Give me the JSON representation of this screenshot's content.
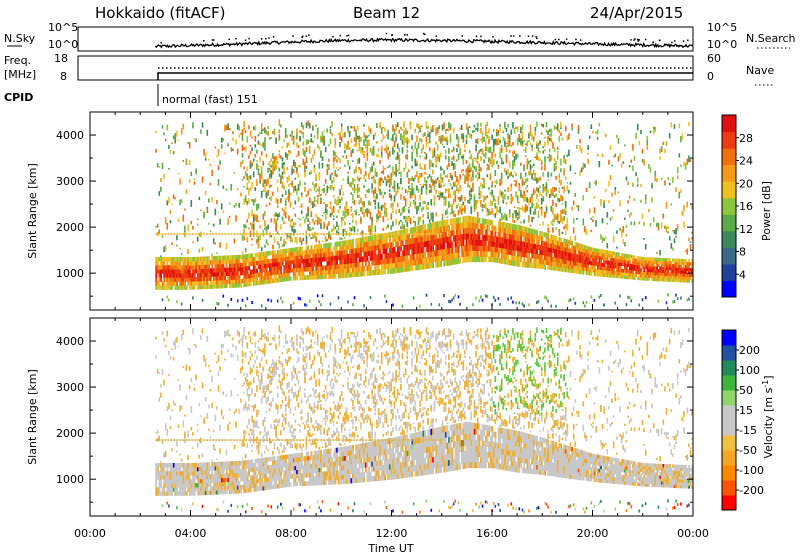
{
  "header": {
    "station": "Hokkaido (fitACF)",
    "beam": "Beam 12",
    "date": "24/Apr/2015"
  },
  "nsky_panel": {
    "left_label": "N.Sky",
    "left_ticks": [
      "10^5",
      "10^0"
    ],
    "right_label": "N.Search",
    "right_ticks": [
      "10^5",
      "10^0"
    ]
  },
  "freq_panel": {
    "left_label_1": "Freq.",
    "left_label_2": "[MHz]",
    "left_ticks": [
      "18",
      "8"
    ],
    "right_label": "Nave",
    "right_ticks": [
      "60",
      "0"
    ]
  },
  "cpid": {
    "label": "CPID",
    "mode": "normal (fast) 151"
  },
  "x_axis": {
    "label": "Time UT",
    "ticks": [
      "00:00",
      "04:00",
      "08:00",
      "12:00",
      "16:00",
      "20:00",
      "00:00"
    ]
  },
  "colors": {
    "power_scale": [
      "#0000ff",
      "#20409c",
      "#3a6a8a",
      "#3c8a5a",
      "#5aaa46",
      "#8cc63c",
      "#f0c020",
      "#f59a18",
      "#f07010",
      "#ee3a10",
      "#e01010"
    ],
    "velocity_scale": [
      "#ff0000",
      "#ff5500",
      "#ff8800",
      "#f5a623",
      "#f0c040",
      "#c8c8c8",
      "#c8c8c8",
      "#8fd36a",
      "#3cb43c",
      "#208a5a",
      "#2050a0",
      "#0000ff"
    ]
  },
  "chart_data": [
    {
      "type": "line",
      "title": "N.Sky",
      "ylabel": "N.Sky",
      "scale": "log",
      "ylim_label": [
        "10^0",
        "10^5"
      ],
      "x_hours": [
        2.6,
        4,
        6,
        8,
        10,
        12,
        14,
        16,
        18,
        20,
        22,
        24
      ],
      "values_relative": [
        0.15,
        0.25,
        0.4,
        0.6,
        0.75,
        0.8,
        0.75,
        0.65,
        0.55,
        0.4,
        0.3,
        0.2
      ]
    },
    {
      "type": "line",
      "title": "Freq / Nave",
      "ylabel": "Freq. [MHz]",
      "ylim": [
        8,
        18
      ],
      "x_hours": [
        2.6,
        24
      ],
      "freq_values": [
        11,
        11
      ],
      "nave_values": [
        33,
        33
      ]
    },
    {
      "type": "heatmap",
      "title": "Power",
      "ylabel": "Slant Range [km]",
      "xlabel": "Time UT",
      "colorbar_label": "Power [dB]",
      "colorbar_ticks": [
        "4",
        "8",
        "12",
        "16",
        "20",
        "24",
        "28"
      ],
      "yticks": [
        "1000",
        "2000",
        "3000",
        "4000"
      ],
      "ylim": [
        200,
        4500
      ],
      "xlim_hours": [
        0,
        24
      ],
      "data_start_hour": 2.6,
      "main_band": {
        "x_hours": [
          2.6,
          4,
          6,
          8,
          10,
          12,
          14,
          15,
          16,
          17,
          18,
          20,
          22,
          24
        ],
        "center_km": [
          1000,
          1000,
          1050,
          1200,
          1300,
          1450,
          1650,
          1750,
          1700,
          1600,
          1500,
          1250,
          1100,
          1050
        ],
        "half_width_km": [
          350,
          350,
          350,
          350,
          400,
          450,
          500,
          500,
          450,
          450,
          400,
          300,
          250,
          250
        ]
      }
    },
    {
      "type": "heatmap",
      "title": "Velocity",
      "ylabel": "Slant Range [km]",
      "xlabel": "Time UT",
      "colorbar_label": "Velocity [m s^-1]",
      "colorbar_ticks": [
        "-200",
        "-100",
        "-50",
        "-15",
        "15",
        "50",
        "100",
        "200"
      ],
      "yticks": [
        "1000",
        "2000",
        "3000",
        "4000"
      ],
      "ylim": [
        200,
        4500
      ],
      "xlim_hours": [
        0,
        24
      ],
      "data_start_hour": 2.6
    }
  ]
}
